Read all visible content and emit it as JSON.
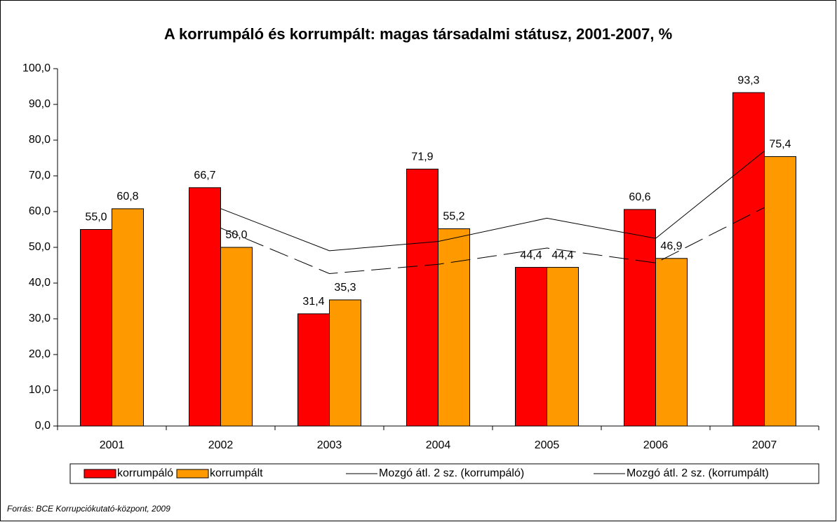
{
  "chart_data": {
    "type": "bar",
    "title": "A korrumpáló és korrumpált: magas társadalmi státusz, 2001-2007, %",
    "categories": [
      "2001",
      "2002",
      "2003",
      "2004",
      "2005",
      "2006",
      "2007"
    ],
    "series": [
      {
        "name": "korrumpáló",
        "color": "#ff0000",
        "values": [
          55.0,
          66.7,
          31.4,
          71.9,
          44.4,
          60.6,
          93.3
        ],
        "value_labels": [
          "55,0",
          "66,7",
          "31,4",
          "71,9",
          "44,4",
          "60,6",
          "93,3"
        ]
      },
      {
        "name": "korrumpált",
        "color": "#ff9900",
        "values": [
          60.8,
          50.0,
          35.3,
          55.2,
          44.4,
          46.9,
          75.4
        ],
        "value_labels": [
          "60,8",
          "50,0",
          "35,3",
          "55,2",
          "44,4",
          "46,9",
          "75,4"
        ]
      },
      {
        "name": "Mozgó átl. 2 sz. (korrumpáló)",
        "type": "line",
        "color": "#000000",
        "dash": false,
        "values": [
          null,
          60.85,
          49.05,
          51.65,
          58.15,
          52.5,
          76.95
        ]
      },
      {
        "name": "Mozgó átl. 2 sz. (korrumpált)",
        "type": "line",
        "color": "#000000",
        "dash": true,
        "values": [
          null,
          55.4,
          42.65,
          45.25,
          49.8,
          45.65,
          61.15
        ]
      }
    ],
    "ylim": [
      0,
      100
    ],
    "yticks": [
      {
        "value": 0,
        "label": "0,0"
      },
      {
        "value": 10,
        "label": "10,0"
      },
      {
        "value": 20,
        "label": "20,0"
      },
      {
        "value": 30,
        "label": "30,0"
      },
      {
        "value": 40,
        "label": "40,0"
      },
      {
        "value": 50,
        "label": "50,0"
      },
      {
        "value": 60,
        "label": "60,0"
      },
      {
        "value": 70,
        "label": "70,0"
      },
      {
        "value": 80,
        "label": "80,0"
      },
      {
        "value": 90,
        "label": "90,0"
      },
      {
        "value": 100,
        "label": "100,0"
      }
    ],
    "legend": "bottom",
    "source": "Forrás: BCE Korrupciókutató-központ, 2009"
  }
}
